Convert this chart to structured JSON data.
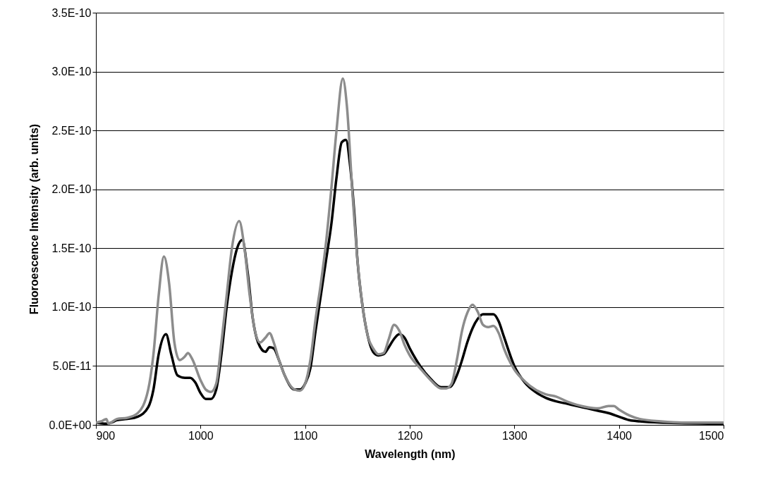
{
  "chart_data": {
    "type": "line",
    "xlabel": "Wavelength (nm)",
    "ylabel": "Fluoroescence Intensity (arb. units)",
    "xlim": [
      900,
      1500
    ],
    "xticks": [
      900,
      1000,
      1100,
      1200,
      1300,
      1400,
      1500
    ],
    "ylim": [
      0,
      3.5e-10
    ],
    "yticks": [
      {
        "value": 0,
        "label": "0.0E+00"
      },
      {
        "value": 5e-11,
        "label": "5.0E-11"
      },
      {
        "value": 1e-10,
        "label": "1.0E-10"
      },
      {
        "value": 1.5e-10,
        "label": "1.5E-10"
      },
      {
        "value": 2e-10,
        "label": "2.0E-10"
      },
      {
        "value": 2.5e-10,
        "label": "2.5E-10"
      },
      {
        "value": 3e-10,
        "label": "3.0E-10"
      },
      {
        "value": 3.5e-10,
        "label": "3.5E-10"
      }
    ],
    "grid": "y",
    "marker": "none",
    "line_style": "solid",
    "series": [
      {
        "color": "#000000",
        "x": [
          900,
          910,
          915,
          920,
          930,
          940,
          950,
          955,
          960,
          967,
          972,
          978,
          985,
          990,
          995,
          1000,
          1005,
          1010,
          1015,
          1020,
          1025,
          1030,
          1035,
          1040,
          1045,
          1050,
          1055,
          1062,
          1066,
          1070,
          1075,
          1080,
          1090,
          1095,
          1100,
          1105,
          1110,
          1115,
          1120,
          1125,
          1130,
          1135,
          1139,
          1143,
          1147,
          1150,
          1155,
          1160,
          1165,
          1170,
          1175,
          1180,
          1185,
          1190,
          1195,
          1200,
          1210,
          1220,
          1230,
          1238,
          1245,
          1250,
          1255,
          1260,
          1265,
          1270,
          1275,
          1280,
          1285,
          1290,
          1300,
          1310,
          1320,
          1330,
          1340,
          1350,
          1360,
          1370,
          1380,
          1390,
          1400,
          1410,
          1420,
          1440,
          1500
        ],
        "values": [
          2e-12,
          1e-12,
          2e-12,
          4e-12,
          5e-12,
          7e-12,
          1.5e-11,
          3e-11,
          6e-11,
          7.7e-11,
          6e-11,
          4.2e-11,
          4e-11,
          4e-11,
          3.6e-11,
          2.7e-11,
          2.2e-11,
          2.2e-11,
          3e-11,
          6e-11,
          1e-10,
          1.3e-10,
          1.5e-10,
          1.57e-10,
          1.3e-10,
          9e-11,
          7e-11,
          6.2e-11,
          6.6e-11,
          6.5e-11,
          5.5e-11,
          4.3e-11,
          3e-11,
          3e-11,
          3.5e-11,
          4.8e-11,
          8e-11,
          1.1e-10,
          1.4e-10,
          1.7e-10,
          2.1e-10,
          2.4e-10,
          2.42e-10,
          2.2e-10,
          1.8e-10,
          1.4e-10,
          1e-10,
          7.5e-11,
          6.2e-11,
          5.9e-11,
          6e-11,
          6.6e-11,
          7.3e-11,
          7.7e-11,
          7.4e-11,
          6.5e-11,
          5e-11,
          3.9e-11,
          3.2e-11,
          3.2e-11,
          4.2e-11,
          5.5e-11,
          7e-11,
          8.2e-11,
          9e-11,
          9.4e-11,
          9.4e-11,
          9.4e-11,
          8.8e-11,
          7.5e-11,
          5e-11,
          3.6e-11,
          2.8e-11,
          2.3e-11,
          2e-11,
          1.8e-11,
          1.6e-11,
          1.4e-11,
          1.2e-11,
          1e-11,
          7e-12,
          4e-12,
          3e-12,
          2e-12,
          1e-12
        ]
      },
      {
        "color": "#8c8c8c",
        "x": [
          900,
          905,
          910,
          912,
          920,
          930,
          940,
          950,
          955,
          960,
          965,
          970,
          975,
          980,
          985,
          988,
          992,
          1000,
          1005,
          1010,
          1015,
          1020,
          1025,
          1030,
          1037,
          1042,
          1047,
          1052,
          1057,
          1062,
          1066,
          1070,
          1075,
          1080,
          1090,
          1095,
          1100,
          1105,
          1110,
          1115,
          1120,
          1125,
          1130,
          1136,
          1140,
          1145,
          1150,
          1155,
          1160,
          1165,
          1170,
          1175,
          1180,
          1185,
          1190,
          1195,
          1200,
          1210,
          1220,
          1230,
          1235,
          1240,
          1245,
          1250,
          1255,
          1260,
          1265,
          1270,
          1275,
          1280,
          1285,
          1290,
          1300,
          1310,
          1320,
          1330,
          1340,
          1350,
          1360,
          1370,
          1380,
          1390,
          1395,
          1400,
          1410,
          1420,
          1440,
          1460,
          1500
        ],
        "values": [
          2e-12,
          3e-12,
          5e-12,
          1e-12,
          5e-12,
          6e-12,
          1e-11,
          3e-11,
          6e-11,
          1.1e-10,
          1.43e-10,
          1.2e-10,
          7e-11,
          5.5e-11,
          5.8e-11,
          6.1e-11,
          5.6e-11,
          3.8e-11,
          3e-11,
          2.8e-11,
          3.5e-11,
          7e-11,
          1.1e-10,
          1.5e-10,
          1.73e-10,
          1.5e-10,
          1.1e-10,
          8e-11,
          7e-11,
          7.4e-11,
          7.8e-11,
          7e-11,
          5.5e-11,
          4.3e-11,
          3e-11,
          2.9e-11,
          3.5e-11,
          5.5e-11,
          9e-11,
          1.2e-10,
          1.55e-10,
          2e-10,
          2.5e-10,
          2.94e-10,
          2.7e-10,
          2e-10,
          1.4e-10,
          1e-10,
          7.5e-11,
          6.5e-11,
          6e-11,
          6.1e-11,
          7.3e-11,
          8.5e-11,
          8e-11,
          6.8e-11,
          5.9e-11,
          4.8e-11,
          3.8e-11,
          3.1e-11,
          3.1e-11,
          3.5e-11,
          5.5e-11,
          8e-11,
          9.5e-11,
          1.02e-10,
          9.6e-11,
          8.5e-11,
          8.3e-11,
          8.4e-11,
          7.8e-11,
          6.5e-11,
          4.7e-11,
          3.7e-11,
          3e-11,
          2.6e-11,
          2.4e-11,
          2e-11,
          1.7e-11,
          1.5e-11,
          1.4e-11,
          1.6e-11,
          1.6e-11,
          1.3e-11,
          8e-12,
          5e-12,
          3e-12,
          2e-12,
          2e-12
        ]
      }
    ]
  }
}
